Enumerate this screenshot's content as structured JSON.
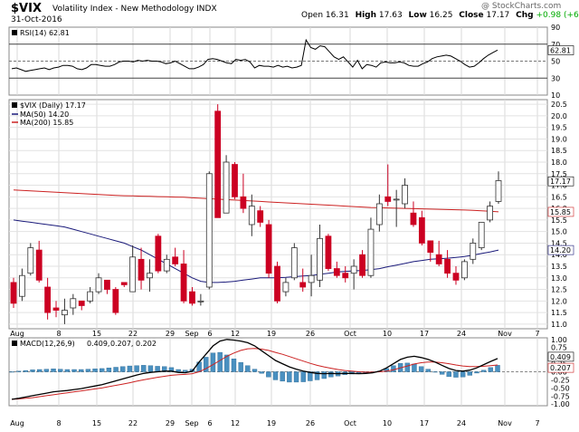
{
  "header": {
    "ticker": "$VIX",
    "subtitle": "Volatility Index - New Methodology  INDX",
    "date": "31-Oct-2016",
    "open_label": "Open",
    "open": "16.31",
    "high_label": "High",
    "high": "17.63",
    "low_label": "Low",
    "low": "16.25",
    "close_label": "Close",
    "close": "17.17",
    "chg_label": "Chg",
    "chg": "+0.98 (+6.05%)",
    "watermark": "@ StockCharts.com"
  },
  "colors": {
    "up": "#ffffff",
    "down": "#cc0022",
    "ma50": "#1a1a7a",
    "ma200": "#cc2222",
    "macd": "#000000",
    "signal": "#cc2222",
    "hist": "#4a90c0",
    "rsi": "#000000"
  },
  "chart_data": [
    {
      "type": "line",
      "name": "rsi",
      "legend": "RSI(14) 62.81",
      "ylim": [
        10,
        90
      ],
      "yticks": [
        10,
        30,
        50,
        70,
        90
      ],
      "ref_lines": [
        30,
        50,
        70
      ],
      "last_label": "62.81",
      "values": [
        41,
        42,
        40,
        38,
        39,
        40,
        41,
        42,
        40,
        42,
        43,
        45,
        45,
        44,
        41,
        40,
        42,
        46,
        46,
        45,
        44,
        44,
        46,
        49,
        50,
        50,
        49,
        51,
        50,
        51,
        50,
        50,
        49,
        47,
        48,
        50,
        47,
        44,
        41,
        41,
        43,
        46,
        52,
        53,
        52,
        50,
        48,
        47,
        52,
        51,
        52,
        49,
        42,
        45,
        44,
        44,
        43,
        45,
        43,
        44,
        42,
        43,
        45,
        75,
        66,
        64,
        68,
        67,
        61,
        55,
        52,
        55,
        49,
        43,
        51,
        41,
        46,
        45,
        43,
        48,
        49,
        48,
        48,
        49,
        48,
        45,
        44,
        44,
        47,
        49,
        53,
        55,
        56,
        57,
        56,
        53,
        50,
        46,
        43,
        44,
        48,
        53,
        57,
        60,
        63
      ]
    },
    {
      "type": "candlestick",
      "name": "price",
      "legend": [
        "$VIX (Daily) 17.17",
        "MA(50) 14.20",
        "MA(200) 15.85"
      ],
      "ylim": [
        10.8,
        20.7
      ],
      "yticks": [
        11.0,
        11.5,
        12.0,
        12.5,
        13.0,
        13.5,
        14.0,
        14.5,
        15.0,
        15.5,
        16.0,
        16.5,
        17.0,
        17.5,
        18.0,
        18.5,
        19.0,
        19.5,
        20.0,
        20.5
      ],
      "value_labels": [
        "17.17",
        "15.85",
        "14.20"
      ],
      "x_labels": [
        "Aug",
        "8",
        "15",
        "22",
        "29",
        "Sep",
        "6",
        "12",
        "19",
        "26",
        "Oct",
        "10",
        "17",
        "24",
        "Nov",
        "7"
      ],
      "candles": [
        {
          "o": 12.8,
          "h": 13.0,
          "l": 11.7,
          "c": 11.9
        },
        {
          "o": 12.2,
          "h": 13.4,
          "l": 12.0,
          "c": 13.1
        },
        {
          "o": 13.2,
          "h": 14.5,
          "l": 13.1,
          "c": 14.3
        },
        {
          "o": 14.2,
          "h": 14.6,
          "l": 12.8,
          "c": 12.9
        },
        {
          "o": 12.6,
          "h": 13.0,
          "l": 11.2,
          "c": 11.5
        },
        {
          "o": 11.7,
          "h": 12.0,
          "l": 11.3,
          "c": 11.6
        },
        {
          "o": 11.4,
          "h": 12.1,
          "l": 11.0,
          "c": 11.6
        },
        {
          "o": 11.7,
          "h": 12.3,
          "l": 11.4,
          "c": 12.1
        },
        {
          "o": 12.0,
          "h": 12.0,
          "l": 11.6,
          "c": 11.8
        },
        {
          "o": 12.0,
          "h": 12.6,
          "l": 11.9,
          "c": 12.4
        },
        {
          "o": 12.4,
          "h": 13.2,
          "l": 12.3,
          "c": 13.0
        },
        {
          "o": 12.9,
          "h": 12.9,
          "l": 12.3,
          "c": 12.5
        },
        {
          "o": 12.5,
          "h": 12.6,
          "l": 11.4,
          "c": 11.5
        },
        {
          "o": 12.8,
          "h": 12.8,
          "l": 12.6,
          "c": 12.7
        },
        {
          "o": 12.4,
          "h": 14.4,
          "l": 12.4,
          "c": 13.9
        },
        {
          "o": 13.8,
          "h": 14.3,
          "l": 12.5,
          "c": 12.9
        },
        {
          "o": 13.0,
          "h": 13.8,
          "l": 12.4,
          "c": 13.2
        },
        {
          "o": 14.8,
          "h": 14.9,
          "l": 13.2,
          "c": 13.3
        },
        {
          "o": 13.3,
          "h": 14.0,
          "l": 13.2,
          "c": 13.8
        },
        {
          "o": 13.9,
          "h": 14.3,
          "l": 13.5,
          "c": 13.6
        },
        {
          "o": 13.6,
          "h": 14.2,
          "l": 11.9,
          "c": 12.0
        },
        {
          "o": 12.4,
          "h": 12.6,
          "l": 11.8,
          "c": 11.9
        },
        {
          "o": 12.0,
          "h": 12.3,
          "l": 11.8,
          "c": 12.0
        },
        {
          "o": 12.6,
          "h": 17.6,
          "l": 12.5,
          "c": 17.5
        },
        {
          "o": 20.2,
          "h": 20.5,
          "l": 15.6,
          "c": 15.6
        },
        {
          "o": 15.8,
          "h": 18.3,
          "l": 15.8,
          "c": 18.0
        },
        {
          "o": 17.9,
          "h": 18.0,
          "l": 16.4,
          "c": 16.5
        },
        {
          "o": 16.5,
          "h": 17.5,
          "l": 15.8,
          "c": 16.0
        },
        {
          "o": 15.3,
          "h": 16.6,
          "l": 14.8,
          "c": 16.1
        },
        {
          "o": 15.9,
          "h": 16.1,
          "l": 15.2,
          "c": 15.4
        },
        {
          "o": 15.3,
          "h": 15.5,
          "l": 13.0,
          "c": 13.2
        },
        {
          "o": 13.5,
          "h": 13.7,
          "l": 11.9,
          "c": 12.0
        },
        {
          "o": 12.4,
          "h": 13.0,
          "l": 12.2,
          "c": 12.8
        },
        {
          "o": 13.0,
          "h": 14.5,
          "l": 12.9,
          "c": 14.3
        },
        {
          "o": 12.8,
          "h": 13.4,
          "l": 12.4,
          "c": 12.6
        },
        {
          "o": 12.8,
          "h": 14.0,
          "l": 12.2,
          "c": 13.1
        },
        {
          "o": 12.9,
          "h": 15.3,
          "l": 12.6,
          "c": 14.7
        },
        {
          "o": 14.8,
          "h": 14.9,
          "l": 13.3,
          "c": 13.4
        },
        {
          "o": 13.4,
          "h": 13.7,
          "l": 13.0,
          "c": 13.1
        },
        {
          "o": 13.2,
          "h": 13.5,
          "l": 12.8,
          "c": 13.0
        },
        {
          "o": 13.2,
          "h": 13.8,
          "l": 12.5,
          "c": 13.5
        },
        {
          "o": 14.0,
          "h": 14.2,
          "l": 13.0,
          "c": 13.1
        },
        {
          "o": 13.1,
          "h": 15.6,
          "l": 13.0,
          "c": 15.1
        },
        {
          "o": 15.3,
          "h": 16.6,
          "l": 15.0,
          "c": 16.2
        },
        {
          "o": 16.5,
          "h": 17.9,
          "l": 16.1,
          "c": 16.3
        },
        {
          "o": 16.4,
          "h": 16.8,
          "l": 15.2,
          "c": 16.4
        },
        {
          "o": 16.2,
          "h": 17.3,
          "l": 16.0,
          "c": 17.0
        },
        {
          "o": 15.8,
          "h": 16.3,
          "l": 15.2,
          "c": 15.3
        },
        {
          "o": 15.6,
          "h": 15.9,
          "l": 14.4,
          "c": 14.5
        },
        {
          "o": 14.6,
          "h": 14.6,
          "l": 13.7,
          "c": 14.1
        },
        {
          "o": 14.0,
          "h": 14.6,
          "l": 13.5,
          "c": 13.6
        },
        {
          "o": 13.8,
          "h": 14.2,
          "l": 13.0,
          "c": 13.2
        },
        {
          "o": 13.2,
          "h": 13.5,
          "l": 12.7,
          "c": 12.9
        },
        {
          "o": 13.0,
          "h": 13.8,
          "l": 12.9,
          "c": 13.7
        },
        {
          "o": 13.8,
          "h": 14.7,
          "l": 13.6,
          "c": 14.5
        },
        {
          "o": 14.3,
          "h": 15.4,
          "l": 14.2,
          "c": 15.4
        },
        {
          "o": 15.5,
          "h": 16.3,
          "l": 15.4,
          "c": 16.1
        },
        {
          "o": 16.3,
          "h": 17.6,
          "l": 16.2,
          "c": 17.2
        }
      ],
      "ma50": [
        15.5,
        15.45,
        15.4,
        15.35,
        15.3,
        15.25,
        15.2,
        15.1,
        15.0,
        14.9,
        14.8,
        14.7,
        14.6,
        14.5,
        14.35,
        14.2,
        14.0,
        13.8,
        13.6,
        13.4,
        13.2,
        13.0,
        12.85,
        12.8,
        12.8,
        12.82,
        12.85,
        12.9,
        12.95,
        13.0,
        13.0,
        13.0,
        13.02,
        13.05,
        13.08,
        13.1,
        13.15,
        13.2,
        13.25,
        13.28,
        13.3,
        13.32,
        13.35,
        13.4,
        13.48,
        13.55,
        13.62,
        13.7,
        13.75,
        13.8,
        13.82,
        13.85,
        13.88,
        13.92,
        13.98,
        14.05,
        14.12,
        14.2
      ],
      "ma200": [
        16.8,
        16.78,
        16.76,
        16.74,
        16.72,
        16.7,
        16.68,
        16.66,
        16.64,
        16.62,
        16.6,
        16.58,
        16.56,
        16.55,
        16.54,
        16.53,
        16.52,
        16.51,
        16.5,
        16.49,
        16.48,
        16.46,
        16.44,
        16.42,
        16.4,
        16.38,
        16.36,
        16.34,
        16.32,
        16.3,
        16.28,
        16.26,
        16.24,
        16.22,
        16.2,
        16.18,
        16.16,
        16.14,
        16.12,
        16.1,
        16.08,
        16.06,
        16.04,
        16.03,
        16.02,
        16.01,
        16.0,
        15.99,
        15.98,
        15.97,
        15.96,
        15.95,
        15.94,
        15.93,
        15.92,
        15.9,
        15.88,
        15.85
      ]
    },
    {
      "type": "line",
      "name": "macd",
      "legend": [
        "MACD(12,26,9)",
        "0.409,",
        "0.207,",
        "0.202"
      ],
      "ylim": [
        -1.05,
        1.05
      ],
      "yticks": [
        -1.0,
        -0.75,
        -0.5,
        -0.25,
        0.0,
        0.25,
        0.5,
        0.75,
        1.0
      ],
      "value_labels": [
        "0.409",
        "0.207"
      ],
      "x_labels": [
        "Aug",
        "8",
        "15",
        "22",
        "29",
        "Sep",
        "6",
        "12",
        "19",
        "26",
        "Oct",
        "10",
        "17",
        "24",
        "Nov",
        "7"
      ],
      "macd": [
        -0.85,
        -0.82,
        -0.78,
        -0.74,
        -0.7,
        -0.66,
        -0.62,
        -0.6,
        -0.58,
        -0.55,
        -0.52,
        -0.48,
        -0.44,
        -0.4,
        -0.34,
        -0.28,
        -0.22,
        -0.16,
        -0.1,
        -0.05,
        -0.02,
        0.0,
        0.02,
        0.02,
        -0.02,
        -0.03,
        0.02,
        0.3,
        0.55,
        0.8,
        0.95,
        1.0,
        0.98,
        0.95,
        0.9,
        0.8,
        0.65,
        0.5,
        0.35,
        0.25,
        0.15,
        0.08,
        0.02,
        -0.02,
        -0.05,
        -0.06,
        -0.05,
        -0.06,
        -0.05,
        -0.05,
        -0.06,
        -0.05,
        -0.03,
        0.02,
        0.12,
        0.25,
        0.38,
        0.45,
        0.48,
        0.44,
        0.38,
        0.3,
        0.2,
        0.1,
        0.04,
        0.02,
        0.05,
        0.12,
        0.22,
        0.32,
        0.41
      ],
      "signal": [
        -0.85,
        -0.84,
        -0.82,
        -0.8,
        -0.77,
        -0.74,
        -0.71,
        -0.68,
        -0.65,
        -0.62,
        -0.59,
        -0.56,
        -0.53,
        -0.5,
        -0.46,
        -0.42,
        -0.38,
        -0.34,
        -0.29,
        -0.25,
        -0.21,
        -0.17,
        -0.14,
        -0.11,
        -0.09,
        -0.08,
        -0.06,
        0.0,
        0.1,
        0.22,
        0.35,
        0.48,
        0.58,
        0.66,
        0.71,
        0.72,
        0.7,
        0.66,
        0.6,
        0.54,
        0.47,
        0.4,
        0.33,
        0.26,
        0.2,
        0.15,
        0.11,
        0.07,
        0.04,
        0.02,
        0.0,
        -0.01,
        -0.01,
        0.0,
        0.02,
        0.06,
        0.12,
        0.18,
        0.24,
        0.28,
        0.3,
        0.3,
        0.28,
        0.25,
        0.21,
        0.18,
        0.16,
        0.16,
        0.17,
        0.19,
        0.21
      ],
      "histogram": [
        0.0,
        0.02,
        0.04,
        0.06,
        0.07,
        0.08,
        0.09,
        0.08,
        0.07,
        0.07,
        0.07,
        0.08,
        0.09,
        0.1,
        0.12,
        0.14,
        0.16,
        0.18,
        0.19,
        0.2,
        0.19,
        0.17,
        0.16,
        0.13,
        0.07,
        0.05,
        0.08,
        0.3,
        0.45,
        0.58,
        0.6,
        0.52,
        0.4,
        0.29,
        0.19,
        0.08,
        -0.05,
        -0.16,
        -0.25,
        -0.29,
        -0.32,
        -0.32,
        -0.31,
        -0.28,
        -0.25,
        -0.21,
        -0.16,
        -0.13,
        -0.09,
        -0.07,
        -0.06,
        -0.04,
        -0.02,
        0.02,
        0.1,
        0.19,
        0.26,
        0.27,
        0.24,
        0.16,
        0.08,
        0.0,
        -0.08,
        -0.15,
        -0.17,
        -0.16,
        -0.11,
        -0.04,
        0.05,
        0.13,
        0.2
      ]
    }
  ]
}
